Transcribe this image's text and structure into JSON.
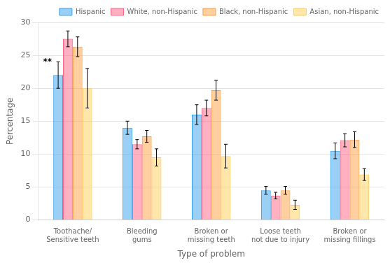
{
  "chart_data": {
    "type": "bar",
    "categories": [
      "Toothache/\nSensitive teeth",
      "Bleeding\ngums",
      "Broken or\nmissing teeth",
      "Loose teeth\nnot due to injury",
      "Broken or\nmissing fillings"
    ],
    "series": [
      {
        "name": "Hispanic",
        "values": [
          22.0,
          14.0,
          16.0,
          4.5,
          10.5
        ],
        "errors": [
          2.0,
          1.0,
          1.5,
          0.6,
          1.2
        ]
      },
      {
        "name": "White, non-Hispanic",
        "values": [
          27.5,
          11.5,
          17.0,
          3.7,
          12.1
        ],
        "errors": [
          1.2,
          0.7,
          1.2,
          0.5,
          1.0
        ]
      },
      {
        "name": "Black, non-Hispanic",
        "values": [
          26.3,
          12.7,
          19.7,
          4.5,
          12.2
        ],
        "errors": [
          1.5,
          0.9,
          1.5,
          0.6,
          1.2
        ]
      },
      {
        "name": "Asian, non-Hispanic",
        "values": [
          20.0,
          9.5,
          9.7,
          2.3,
          6.9
        ],
        "errors": [
          3.0,
          1.3,
          1.8,
          0.7,
          0.9
        ]
      }
    ],
    "xlabel": "Type of problem",
    "ylabel": "Percentage",
    "ylim": [
      0,
      30
    ],
    "yticks": [
      0,
      5,
      10,
      15,
      20,
      25,
      30
    ],
    "grid": true,
    "legend": "upper right",
    "annotation": "**"
  }
}
